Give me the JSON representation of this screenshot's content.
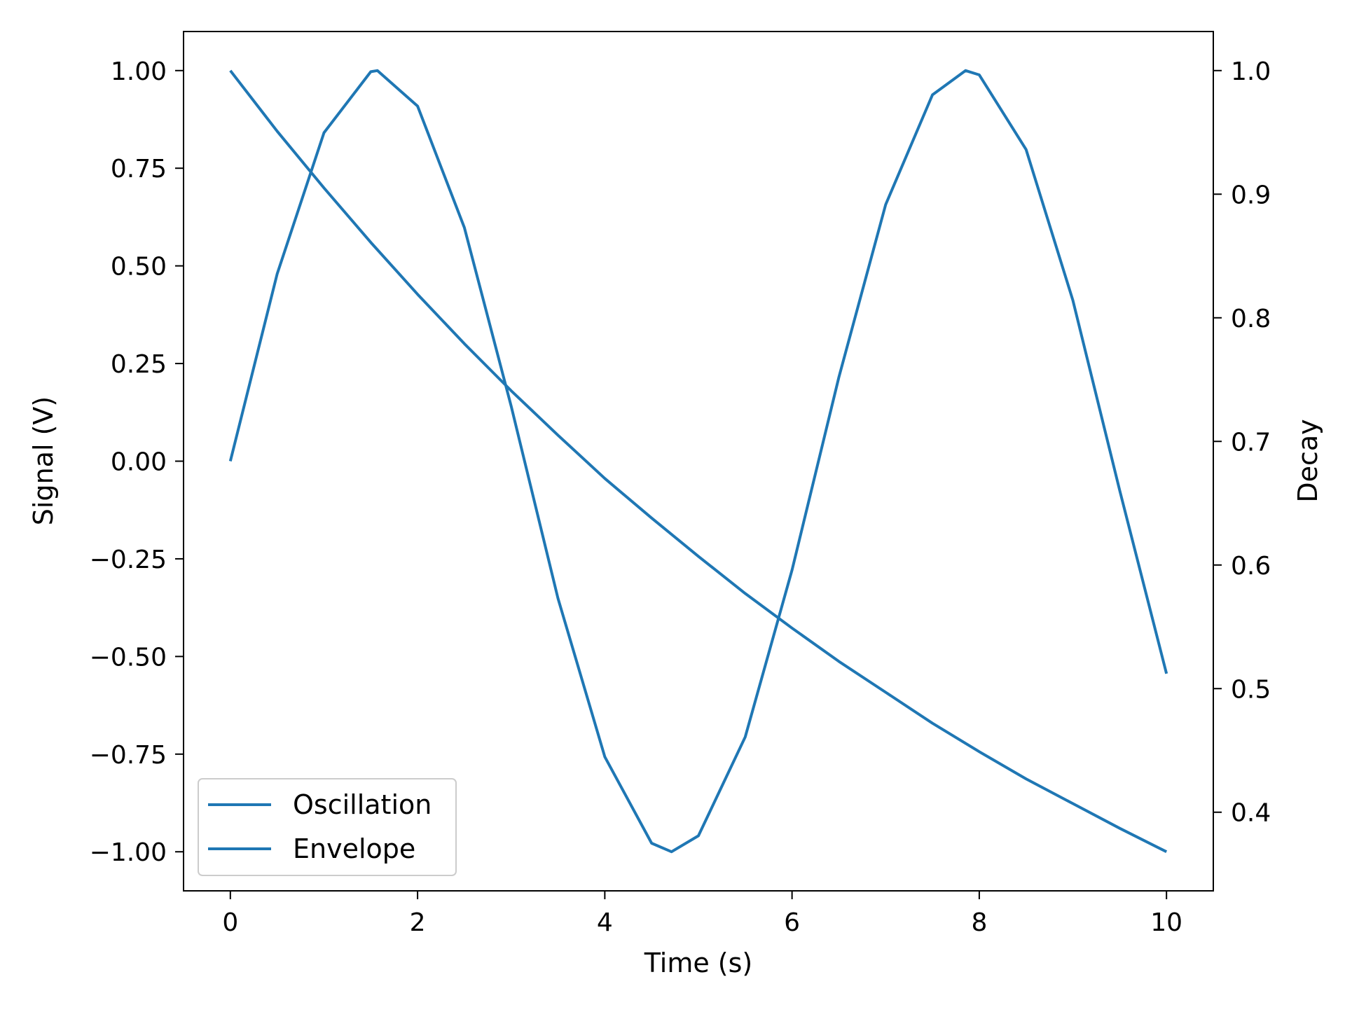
{
  "chart_data": {
    "type": "line",
    "x_axis": {
      "label": "Time (s)",
      "ticks": [
        0,
        2,
        4,
        6,
        8,
        10
      ],
      "tick_labels": [
        "0",
        "2",
        "4",
        "6",
        "8",
        "10"
      ],
      "range": [
        -0.5,
        10.5
      ]
    },
    "y_left": {
      "label": "Signal (V)",
      "ticks": [
        1.0,
        0.75,
        0.5,
        0.25,
        0.0,
        -0.25,
        -0.5,
        -0.75,
        -1.0
      ],
      "tick_labels": [
        "1.00",
        "0.75",
        "0.50",
        "0.25",
        "0.00",
        "−0.25",
        "−0.50",
        "−0.75",
        "−1.00"
      ],
      "range": [
        -1.1,
        1.1
      ]
    },
    "y_right": {
      "label": "Decay",
      "ticks": [
        1.0,
        0.9,
        0.8,
        0.7,
        0.6,
        0.5,
        0.4
      ],
      "tick_labels": [
        "1.0",
        "0.9",
        "0.8",
        "0.7",
        "0.6",
        "0.5",
        "0.4"
      ],
      "range": [
        0.3364,
        1.0316
      ]
    },
    "series": [
      {
        "name": "Oscillation",
        "axis": "left",
        "color": "#1f77b4",
        "x": [
          0,
          0.5,
          1.0,
          1.5,
          1.5708,
          2.0,
          2.5,
          3.0,
          3.5,
          4.0,
          4.5,
          4.7124,
          5.0,
          5.5,
          6.0,
          6.5,
          7.0,
          7.5,
          7.854,
          8.0,
          8.5,
          9.0,
          9.5,
          10.0
        ],
        "y": [
          0.0,
          0.479,
          0.841,
          0.997,
          1.0,
          0.909,
          0.598,
          0.141,
          -0.351,
          -0.757,
          -0.978,
          -1.0,
          -0.959,
          -0.706,
          -0.279,
          0.215,
          0.657,
          0.938,
          1.0,
          0.989,
          0.798,
          0.412,
          -0.075,
          -0.544
        ]
      },
      {
        "name": "Envelope",
        "axis": "right",
        "color": "#1f77b4",
        "x": [
          0,
          0.5,
          1.0,
          1.5,
          2.0,
          2.5,
          3.0,
          3.5,
          4.0,
          4.5,
          5.0,
          5.5,
          6.0,
          6.5,
          7.0,
          7.5,
          8.0,
          8.5,
          9.0,
          9.5,
          10.0
        ],
        "y": [
          1.0,
          0.951,
          0.905,
          0.861,
          0.819,
          0.779,
          0.741,
          0.705,
          0.67,
          0.638,
          0.607,
          0.577,
          0.549,
          0.522,
          0.497,
          0.472,
          0.449,
          0.427,
          0.407,
          0.387,
          0.368
        ]
      }
    ],
    "legend": {
      "placement": "lower-left",
      "entries": [
        "Oscillation",
        "Envelope"
      ]
    },
    "grid": false
  }
}
